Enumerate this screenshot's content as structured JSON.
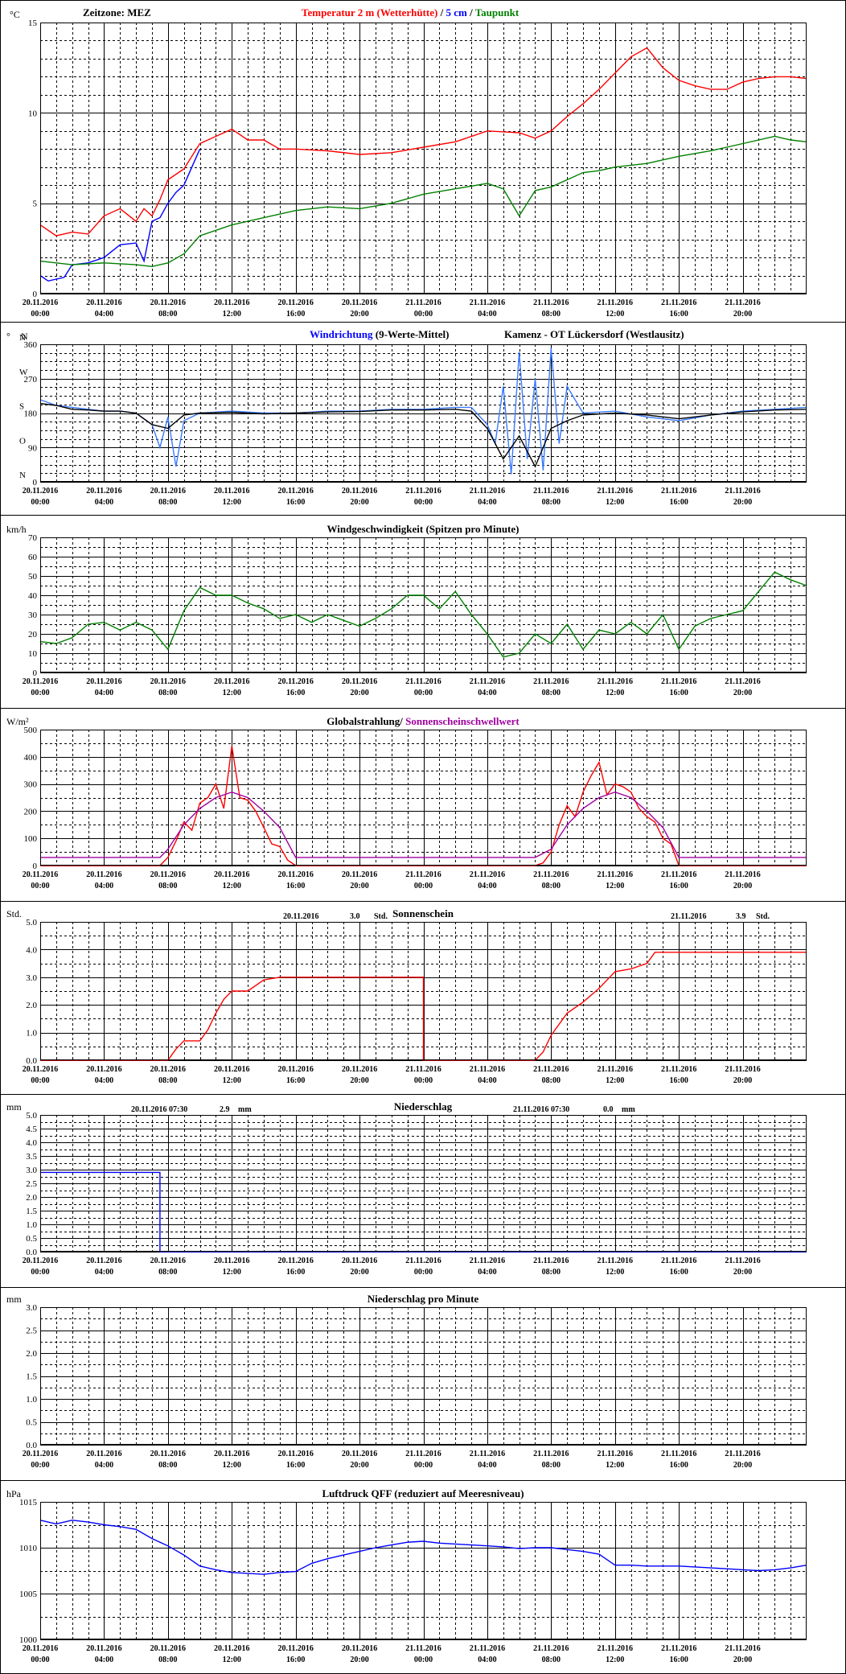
{
  "x_axis": {
    "tick_dates": [
      "20.11.2016",
      "20.11.2016",
      "20.11.2016",
      "20.11.2016",
      "20.11.2016",
      "20.11.2016",
      "21.11.2016",
      "21.11.2016",
      "21.11.2016",
      "21.11.2016",
      "21.11.2016",
      "21.11.2016"
    ],
    "tick_times": [
      "00:00",
      "04:00",
      "08:00",
      "12:00",
      "16:00",
      "20:00",
      "00:00",
      "04:00",
      "08:00",
      "12:00",
      "16:00",
      "20:00"
    ],
    "range_hours": [
      0,
      48
    ]
  },
  "colors": {
    "temp2m": "#ff0000",
    "temp5cm": "#0000ff",
    "dewpoint": "#008000",
    "wind_dir": "#3a7bff",
    "wind_dir_avg": "#000000",
    "wind_speed": "#008000",
    "radiation": "#ff0000",
    "threshold": "#a000a0",
    "sunshine": "#ff0000",
    "precip": "#0000ff",
    "pressure": "#0000ff"
  },
  "chart_data": [
    {
      "id": "temperature",
      "type": "line",
      "unit": "°C",
      "zone_label": "Zeitzone: MEZ",
      "title_parts": [
        "Temperatur 2 m (Wetterhütte)",
        " / ",
        "5 cm",
        " / ",
        "Taupunkt"
      ],
      "ylim": [
        0,
        15
      ],
      "yticks": [
        "0",
        "5",
        "10",
        "15"
      ],
      "ytick_values": [
        0,
        5,
        10,
        15
      ],
      "grid": true,
      "series": [
        {
          "name": "Temperatur 2 m (Wetterhütte)",
          "color": "temp2m",
          "x": [
            0,
            1,
            2,
            3,
            4,
            5,
            6,
            6.5,
            7,
            7.5,
            8,
            9,
            10,
            11,
            12,
            13,
            14,
            15,
            16,
            18,
            20,
            22,
            24,
            26,
            28,
            30,
            31,
            32,
            33,
            34,
            35,
            36,
            37,
            38,
            39,
            40,
            41,
            42,
            43,
            44,
            45,
            46,
            47,
            48
          ],
          "y": [
            3.8,
            3.2,
            3.4,
            3.3,
            4.3,
            4.7,
            4.0,
            4.7,
            4.3,
            5.2,
            6.3,
            6.9,
            8.3,
            8.7,
            9.1,
            8.5,
            8.5,
            8.0,
            8.0,
            7.9,
            7.7,
            7.8,
            8.1,
            8.4,
            9.0,
            8.9,
            8.6,
            9.0,
            9.8,
            10.5,
            11.3,
            12.2,
            13.1,
            13.6,
            12.5,
            11.8,
            11.5,
            11.3,
            11.3,
            11.7,
            11.9,
            12.0,
            12.0,
            11.9
          ]
        },
        {
          "name": "5 cm",
          "color": "temp5cm",
          "x": [
            0,
            0.5,
            1,
            1.5,
            2,
            3,
            4,
            5,
            6,
            6.5,
            7,
            7.5,
            8,
            8.5,
            9,
            9.5,
            10
          ],
          "y": [
            1.0,
            0.7,
            0.8,
            0.9,
            1.6,
            1.7,
            2.0,
            2.7,
            2.8,
            1.8,
            4.0,
            4.2,
            5.0,
            5.6,
            6.0,
            7.0,
            8.0
          ]
        },
        {
          "name": "Taupunkt",
          "color": "dewpoint",
          "x": [
            0,
            2,
            4,
            6,
            7,
            8,
            9,
            10,
            12,
            14,
            16,
            18,
            20,
            22,
            24,
            26,
            28,
            29,
            30,
            31,
            32,
            33,
            34,
            35,
            36,
            38,
            40,
            42,
            44,
            46,
            47,
            48
          ],
          "y": [
            1.8,
            1.6,
            1.7,
            1.6,
            1.5,
            1.7,
            2.2,
            3.2,
            3.8,
            4.2,
            4.6,
            4.8,
            4.7,
            5.0,
            5.5,
            5.8,
            6.1,
            5.8,
            4.3,
            5.7,
            5.9,
            6.3,
            6.7,
            6.8,
            7.0,
            7.2,
            7.6,
            7.9,
            8.3,
            8.7,
            8.5,
            8.4
          ]
        }
      ]
    },
    {
      "id": "wind_direction",
      "type": "line",
      "unit": "°",
      "unit_letter": "N",
      "title_parts": [
        "Windrichtung",
        " (9-Werte-Mittel)",
        "Kamenz - OT Lückersdorf (Westlausitz)"
      ],
      "ylim": [
        0,
        360
      ],
      "yticks": [
        "360",
        "270",
        "180",
        "90",
        "0"
      ],
      "ytick_values": [
        360,
        270,
        180,
        90,
        0
      ],
      "compass": [
        "N",
        "W",
        "S",
        "O",
        "N"
      ],
      "compass_values": [
        360,
        270,
        180,
        90,
        0
      ],
      "grid": true,
      "series": [
        {
          "name": "Windrichtung",
          "color": "wind_dir",
          "x": [
            0,
            1,
            2,
            3,
            4,
            5,
            6,
            7,
            7.5,
            8,
            8.5,
            9,
            10,
            12,
            14,
            16,
            18,
            20,
            22,
            24,
            26,
            27,
            28,
            28.5,
            29,
            29.5,
            30,
            30.5,
            31,
            31.5,
            32,
            32.5,
            33,
            34,
            36,
            38,
            40,
            42,
            44,
            46,
            48
          ],
          "y": [
            215,
            200,
            195,
            190,
            185,
            185,
            180,
            150,
            90,
            170,
            40,
            160,
            180,
            185,
            180,
            180,
            185,
            185,
            190,
            190,
            195,
            195,
            150,
            100,
            250,
            20,
            340,
            60,
            270,
            30,
            350,
            100,
            250,
            180,
            185,
            170,
            160,
            175,
            185,
            190,
            195
          ]
        },
        {
          "name": "9-Werte-Mittel",
          "color": "wind_dir_avg",
          "x": [
            0,
            1,
            2,
            3,
            4,
            5,
            6,
            7,
            8,
            9,
            10,
            12,
            14,
            16,
            18,
            20,
            22,
            24,
            26,
            27,
            28,
            29,
            30,
            31,
            32,
            33,
            34,
            36,
            38,
            40,
            42,
            44,
            46,
            48
          ],
          "y": [
            205,
            200,
            190,
            188,
            185,
            185,
            180,
            150,
            140,
            175,
            180,
            182,
            178,
            180,
            183,
            184,
            188,
            188,
            190,
            185,
            140,
            60,
            120,
            40,
            140,
            160,
            175,
            180,
            175,
            165,
            175,
            183,
            188,
            190
          ]
        }
      ]
    },
    {
      "id": "wind_speed",
      "type": "line",
      "unit": "km/h",
      "title": "Windgeschwindigkeit (Spitzen pro Minute)",
      "ylim": [
        0,
        70
      ],
      "yticks": [
        "0",
        "10",
        "20",
        "30",
        "40",
        "50",
        "60",
        "70"
      ],
      "ytick_values": [
        0,
        10,
        20,
        30,
        40,
        50,
        60,
        70
      ],
      "grid": true,
      "series": [
        {
          "name": "Windgeschwindigkeit",
          "color": "wind_speed",
          "x": [
            0,
            1,
            2,
            3,
            4,
            5,
            6,
            7,
            8,
            9,
            10,
            11,
            12,
            13,
            14,
            15,
            16,
            17,
            18,
            19,
            20,
            21,
            22,
            23,
            24,
            25,
            26,
            27,
            28,
            29,
            30,
            31,
            32,
            33,
            34,
            35,
            36,
            37,
            38,
            39,
            40,
            41,
            42,
            43,
            44,
            45,
            46,
            47,
            48
          ],
          "y": [
            16,
            15,
            18,
            25,
            26,
            22,
            26,
            22,
            12,
            32,
            44,
            40,
            40,
            36,
            33,
            28,
            30,
            26,
            30,
            27,
            24,
            28,
            33,
            40,
            40,
            33,
            42,
            30,
            20,
            8,
            10,
            20,
            15,
            25,
            12,
            22,
            20,
            26,
            20,
            30,
            12,
            24,
            28,
            30,
            32,
            42,
            52,
            48,
            45
          ]
        }
      ]
    },
    {
      "id": "radiation",
      "type": "line",
      "unit": "W/m²",
      "title_parts": [
        "Globalstrahlung/",
        " Sonnenscheinschwellwert"
      ],
      "ylim": [
        0,
        500
      ],
      "yticks": [
        "0",
        "100",
        "200",
        "300",
        "400",
        "500"
      ],
      "ytick_values": [
        0,
        100,
        200,
        300,
        400,
        500
      ],
      "grid": true,
      "series": [
        {
          "name": "Globalstrahlung",
          "color": "radiation",
          "x": [
            0,
            7.5,
            8,
            8.5,
            9,
            9.5,
            10,
            10.5,
            11,
            11.5,
            12,
            12.5,
            13,
            13.5,
            14,
            14.5,
            15,
            15.5,
            16,
            24,
            31,
            31.5,
            32,
            32.5,
            33,
            33.5,
            34,
            34.5,
            35,
            35.5,
            36,
            36.5,
            37,
            37.5,
            38,
            38.5,
            39,
            39.5,
            40,
            48
          ],
          "y": [
            0,
            0,
            30,
            90,
            160,
            130,
            230,
            250,
            300,
            210,
            440,
            250,
            240,
            200,
            140,
            80,
            70,
            20,
            0,
            0,
            0,
            10,
            50,
            150,
            220,
            180,
            270,
            330,
            380,
            260,
            300,
            290,
            270,
            210,
            180,
            160,
            100,
            80,
            0,
            0
          ]
        },
        {
          "name": "Sonnenscheinschwellwert",
          "color": "threshold",
          "x": [
            0,
            7.5,
            8,
            9,
            10,
            11,
            12,
            13,
            14,
            15,
            16,
            31,
            32,
            33,
            34,
            35,
            36,
            37,
            38,
            39,
            40,
            48
          ],
          "y": [
            30,
            30,
            60,
            150,
            210,
            250,
            270,
            250,
            200,
            140,
            30,
            30,
            60,
            150,
            210,
            250,
            270,
            250,
            200,
            140,
            30,
            30
          ]
        }
      ]
    },
    {
      "id": "sunshine",
      "type": "line",
      "unit": "Std.",
      "title": "Sonnenschein",
      "summary_1": [
        "20.11.2016",
        "3.0",
        "Std."
      ],
      "summary_2": [
        "21.11.2016",
        "3.9",
        "Std."
      ],
      "ylim": [
        0,
        5
      ],
      "yticks": [
        "0.0",
        "1.0",
        "2.0",
        "3.0",
        "4.0",
        "5.0"
      ],
      "ytick_values": [
        0,
        1,
        2,
        3,
        4,
        5
      ],
      "grid": true,
      "series": [
        {
          "name": "Sonnenschein",
          "color": "sunshine",
          "x": [
            0,
            8,
            8.5,
            9,
            10,
            10.5,
            11,
            11.5,
            12,
            13,
            14,
            15,
            16,
            24,
            24,
            31,
            31.5,
            32,
            33,
            34,
            35,
            36,
            37,
            38,
            38.5,
            39,
            48
          ],
          "y": [
            0,
            0,
            0.4,
            0.7,
            0.7,
            1.1,
            1.7,
            2.2,
            2.5,
            2.5,
            2.9,
            3.0,
            3.0,
            3.0,
            0,
            0,
            0.3,
            0.9,
            1.7,
            2.1,
            2.6,
            3.2,
            3.3,
            3.5,
            3.9,
            3.9,
            3.9
          ]
        }
      ]
    },
    {
      "id": "precipitation",
      "type": "line",
      "unit": "mm",
      "title": "Niederschlag",
      "summary_1": [
        "20.11.2016 07:30",
        "2.9",
        "mm"
      ],
      "summary_2": [
        "21.11.2016 07:30",
        "0.0",
        "mm"
      ],
      "ylim": [
        0,
        5
      ],
      "yticks": [
        "0.0",
        "0.5",
        "1.0",
        "1.5",
        "2.0",
        "2.5",
        "3.0",
        "3.5",
        "4.0",
        "4.5",
        "5.0"
      ],
      "ytick_values": [
        0,
        0.5,
        1,
        1.5,
        2,
        2.5,
        3,
        3.5,
        4,
        4.5,
        5
      ],
      "grid": true,
      "series": [
        {
          "name": "Niederschlag",
          "color": "precip",
          "x": [
            0,
            7.5,
            7.5,
            48
          ],
          "y": [
            2.9,
            2.9,
            0,
            0
          ]
        }
      ]
    },
    {
      "id": "precip_per_minute",
      "type": "line",
      "unit": "mm",
      "title": "Niederschlag pro Minute",
      "ylim": [
        0,
        3
      ],
      "yticks": [
        "0.0",
        "0.5",
        "1.0",
        "1.5",
        "2.0",
        "2.5",
        "3.0"
      ],
      "ytick_values": [
        0,
        0.5,
        1,
        1.5,
        2,
        2.5,
        3
      ],
      "grid": true,
      "series": []
    },
    {
      "id": "pressure",
      "type": "line",
      "unit": "hPa",
      "title": "Luftdruck QFF (reduziert auf Meeresniveau)",
      "ylim": [
        1000,
        1015
      ],
      "yticks": [
        "1000",
        "1005",
        "1010",
        "1015"
      ],
      "ytick_values": [
        1000,
        1005,
        1010,
        1015
      ],
      "grid": true,
      "series": [
        {
          "name": "Luftdruck QFF",
          "color": "pressure",
          "x": [
            0,
            1,
            2,
            3,
            4,
            5,
            6,
            7,
            8,
            9,
            10,
            11,
            12,
            13,
            14,
            15,
            16,
            17,
            18,
            19,
            20,
            21,
            22,
            23,
            24,
            25,
            26,
            27,
            28,
            29,
            30,
            31,
            32,
            33,
            34,
            35,
            36,
            37,
            38,
            39,
            40,
            41,
            42,
            43,
            44,
            45,
            46,
            47,
            48
          ],
          "y": [
            1013,
            1012.6,
            1013,
            1012.8,
            1012.5,
            1012.3,
            1012,
            1011,
            1010.2,
            1009.2,
            1008,
            1007.6,
            1007.3,
            1007.2,
            1007.1,
            1007.3,
            1007.4,
            1008.3,
            1008.8,
            1009.2,
            1009.6,
            1010,
            1010.3,
            1010.6,
            1010.7,
            1010.5,
            1010.4,
            1010.3,
            1010.2,
            1010.1,
            1009.9,
            1010,
            1010,
            1009.8,
            1009.6,
            1009.3,
            1008.1,
            1008.1,
            1008,
            1008,
            1008,
            1007.9,
            1007.8,
            1007.7,
            1007.6,
            1007.5,
            1007.6,
            1007.8,
            1008.1
          ]
        }
      ]
    }
  ]
}
